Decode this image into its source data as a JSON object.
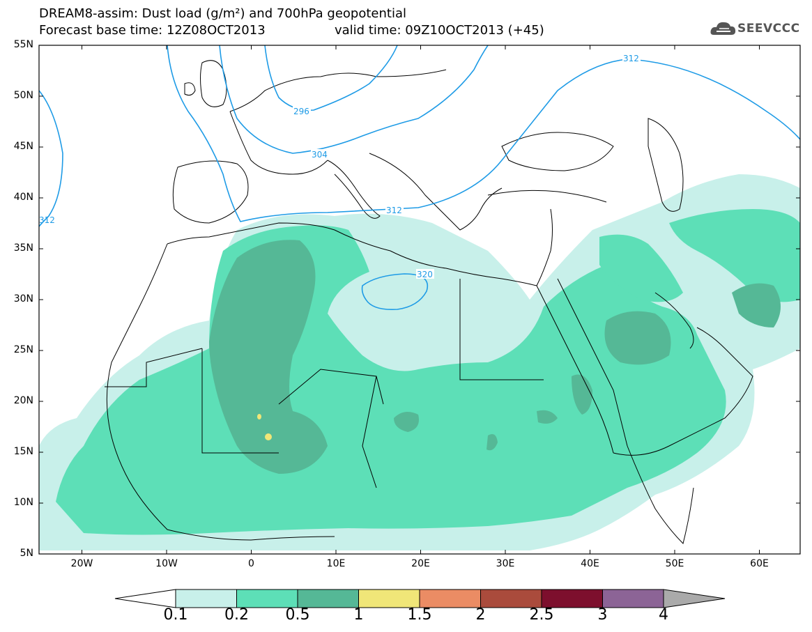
{
  "header": {
    "line1": "DREAM8-assim: Dust load (g/m²) and 700hPa geopotential",
    "line2a": "Forecast base time: 12Z08OCT2013",
    "line2b": "valid time: 09Z10OCT2013 (+45)",
    "logo_text": "SEEVCCC"
  },
  "axes": {
    "lat_labels": [
      "55N",
      "50N",
      "45N",
      "40N",
      "35N",
      "30N",
      "25N",
      "20N",
      "15N",
      "10N",
      "5N"
    ],
    "lon_labels": [
      "20W",
      "10W",
      "0",
      "10E",
      "20E",
      "30E",
      "40E",
      "50E",
      "60E"
    ]
  },
  "contours": {
    "labels": [
      "296",
      "304",
      "312",
      "312",
      "312",
      "320"
    ]
  },
  "colorbar": {
    "labels": [
      "0.1",
      "0.2",
      "0.5",
      "1",
      "1.5",
      "2",
      "2.5",
      "3",
      "4"
    ],
    "colors": [
      "#c8f0ea",
      "#5ddfb7",
      "#55b896",
      "#f0e678",
      "#eb8c64",
      "#aa4b3c",
      "#7d0f2d",
      "#8c6496",
      "#aaaaaa"
    ]
  },
  "colors": {
    "dust_low": "#c8f0ea",
    "dust_mid": "#5ddfb7",
    "dust_high": "#55b896",
    "dust_peak": "#f0e678",
    "contour": "#1e9be6",
    "coast": "#000000"
  }
}
